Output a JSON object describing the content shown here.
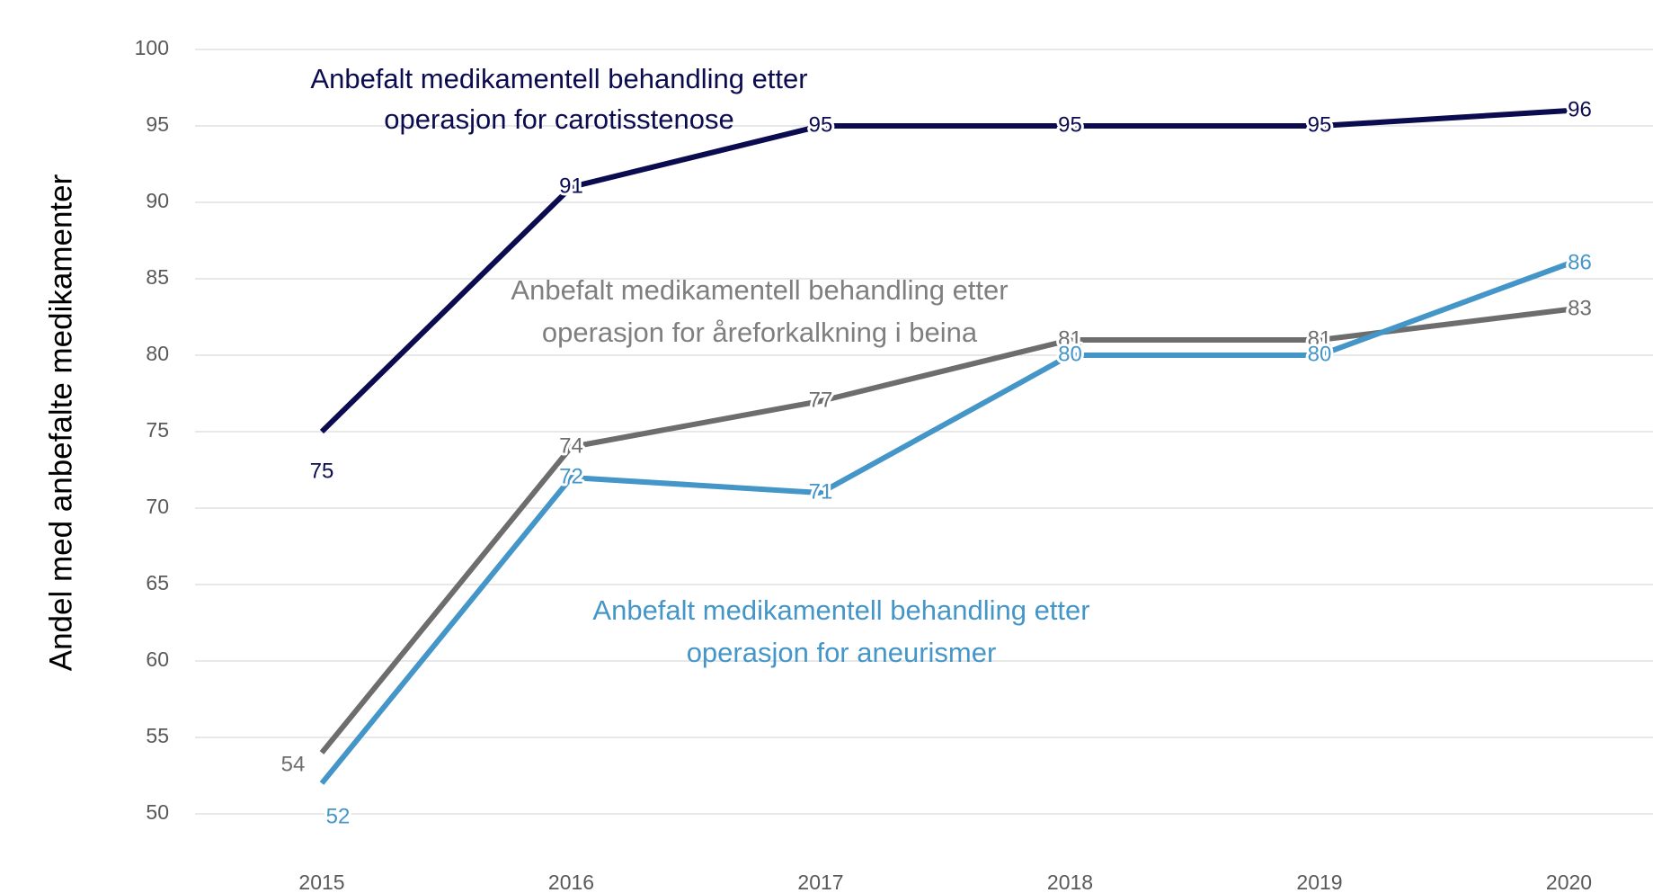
{
  "chart_data": {
    "type": "line",
    "ylabel": "Andel med anbefalte medikamenter",
    "categories": [
      "2015",
      "2016",
      "2017",
      "2018",
      "2019",
      "2020"
    ],
    "ylim": [
      50,
      100
    ],
    "yticks": [
      50,
      55,
      60,
      65,
      70,
      75,
      80,
      85,
      90,
      95,
      100
    ],
    "grid": true,
    "series": [
      {
        "name": "carotisstenose",
        "color": "#0b0b50",
        "values": [
          75,
          91,
          95,
          95,
          95,
          96
        ]
      },
      {
        "name": "åreforkalkning i beina",
        "color": "#6d6d6d",
        "values": [
          54,
          74,
          77,
          81,
          81,
          83
        ]
      },
      {
        "name": "aneurismer",
        "color": "#4596c8",
        "values": [
          52,
          72,
          71,
          80,
          80,
          86
        ]
      }
    ],
    "annotations": [
      {
        "lines": [
          "Anbefalt medikamentell behandling etter",
          "operasjon for carotisstenose"
        ],
        "color": "#0b0b50"
      },
      {
        "lines": [
          "Anbefalt medikamentell behandling etter",
          "operasjon for åreforkalkning i beina"
        ],
        "color": "#7f7f7f"
      },
      {
        "lines": [
          "Anbefalt medikamentell behandling etter",
          "operasjon for aneurismer"
        ],
        "color": "#4596c8"
      }
    ]
  }
}
